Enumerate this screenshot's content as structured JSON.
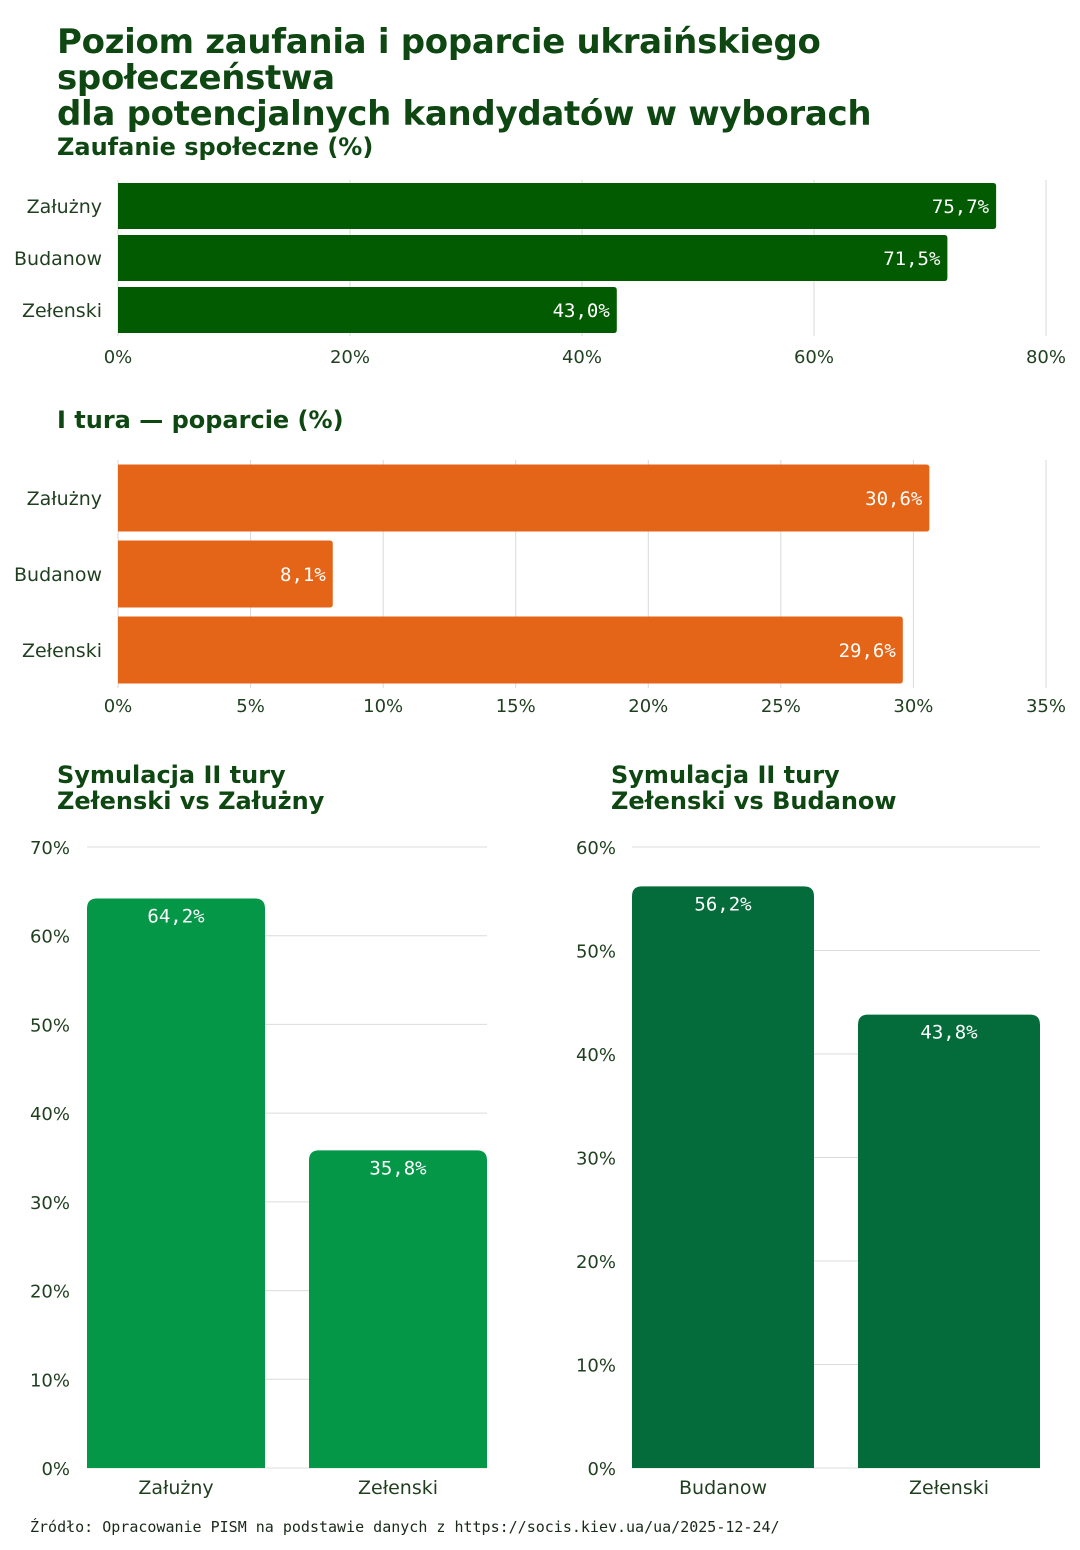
{
  "title_line1": "Poziom zaufania i poparcie ukraińskiego społeczeństwa",
  "title_line2": "dla potencjalnych kandydatów w wyborach",
  "source": "Źródło: Opracowanie PISM na podstawie danych z https://socis.kiev.ua/ua/2025-12-24/",
  "chart_data": [
    {
      "type": "bar",
      "orientation": "horizontal",
      "title": "Zaufanie społeczne (%)",
      "categories": [
        "Załużny",
        "Budanow",
        "Zełenski"
      ],
      "values": [
        75.7,
        71.5,
        43.0
      ],
      "data_labels": [
        "75,7%",
        "71,5%",
        "43,0%"
      ],
      "xlim": [
        0,
        80
      ],
      "ticks": [
        0,
        20,
        40,
        60,
        80
      ],
      "tick_labels": [
        "0%",
        "20%",
        "40%",
        "60%",
        "80%"
      ],
      "color": "#025b00"
    },
    {
      "type": "bar",
      "orientation": "horizontal",
      "title": "I tura — poparcie (%)",
      "categories": [
        "Załużny",
        "Budanow",
        "Zełenski"
      ],
      "values": [
        30.6,
        8.1,
        29.6
      ],
      "data_labels": [
        "30,6%",
        "8,1%",
        "29,6%"
      ],
      "xlim": [
        0,
        35
      ],
      "ticks": [
        0,
        5,
        10,
        15,
        20,
        25,
        30,
        35
      ],
      "tick_labels": [
        "0%",
        "5%",
        "10%",
        "15%",
        "20%",
        "25%",
        "30%",
        "35%"
      ],
      "color": "#e46518"
    },
    {
      "type": "bar",
      "orientation": "vertical",
      "title_line1": "Symulacja II tury",
      "title_line2": "Zełenski vs Załużny",
      "categories": [
        "Załużny",
        "Zełenski"
      ],
      "values": [
        64.2,
        35.8
      ],
      "data_labels": [
        "64,2%",
        "35,8%"
      ],
      "ylim": [
        0,
        70
      ],
      "ticks": [
        0,
        10,
        20,
        30,
        40,
        50,
        60,
        70
      ],
      "tick_labels": [
        "0%",
        "10%",
        "20%",
        "30%",
        "40%",
        "50%",
        "60%",
        "70%"
      ],
      "color": "#039747"
    },
    {
      "type": "bar",
      "orientation": "vertical",
      "title_line1": "Symulacja II tury",
      "title_line2": "Zełenski vs Budanow",
      "categories": [
        "Budanow",
        "Zełenski"
      ],
      "values": [
        56.2,
        43.8
      ],
      "data_labels": [
        "56,2%",
        "43,8%"
      ],
      "ylim": [
        0,
        60
      ],
      "ticks": [
        0,
        10,
        20,
        30,
        40,
        50,
        60
      ],
      "tick_labels": [
        "0%",
        "10%",
        "20%",
        "30%",
        "40%",
        "50%",
        "60%"
      ],
      "color": "#046c3a"
    }
  ]
}
